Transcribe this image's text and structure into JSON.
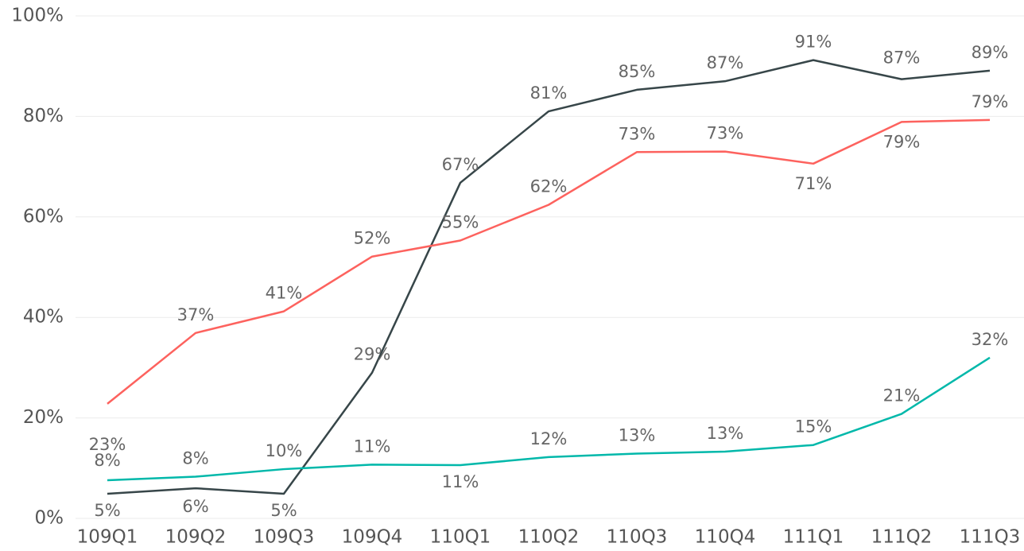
{
  "chart_data": {
    "type": "line",
    "categories": [
      "109Q1",
      "109Q2",
      "109Q3",
      "109Q4",
      "110Q1",
      "110Q2",
      "110Q3",
      "110Q4",
      "111Q1",
      "111Q2",
      "111Q3"
    ],
    "series": [
      {
        "color": "#374649",
        "values": [
          4.9,
          6.0,
          4.9,
          29.0,
          66.8,
          81.0,
          85.3,
          87.0,
          91.2,
          87.4,
          89.1
        ],
        "value_labels": [
          "5%",
          "6%",
          "5%",
          "29%",
          "67%",
          "81%",
          "85%",
          "87%",
          "91%",
          "87%",
          "89%"
        ]
      },
      {
        "color": "#fd625e",
        "values": [
          22.8,
          36.9,
          41.2,
          52.1,
          55.3,
          62.4,
          72.9,
          73.0,
          70.6,
          78.9,
          79.3
        ],
        "value_labels": [
          "23%",
          "37%",
          "41%",
          "52%",
          "55%",
          "62%",
          "73%",
          "73%",
          "71%",
          "79%",
          "79%"
        ]
      },
      {
        "color": "#01b8aa",
        "values": [
          7.6,
          8.3,
          9.8,
          10.7,
          10.6,
          12.2,
          12.9,
          13.3,
          14.6,
          20.8,
          32.0
        ],
        "value_labels": [
          "8%",
          "8%",
          "10%",
          "11%",
          "11%",
          "12%",
          "13%",
          "13%",
          "15%",
          "21%",
          "32%"
        ]
      }
    ],
    "ylim": [
      0,
      100
    ],
    "yticks": [
      {
        "value": 0,
        "label": "0%"
      },
      {
        "value": 20,
        "label": "20%"
      },
      {
        "value": 40,
        "label": "40%"
      },
      {
        "value": 60,
        "label": "60%"
      },
      {
        "value": 80,
        "label": "80%"
      },
      {
        "value": 100,
        "label": "100%"
      }
    ],
    "grid": true
  }
}
